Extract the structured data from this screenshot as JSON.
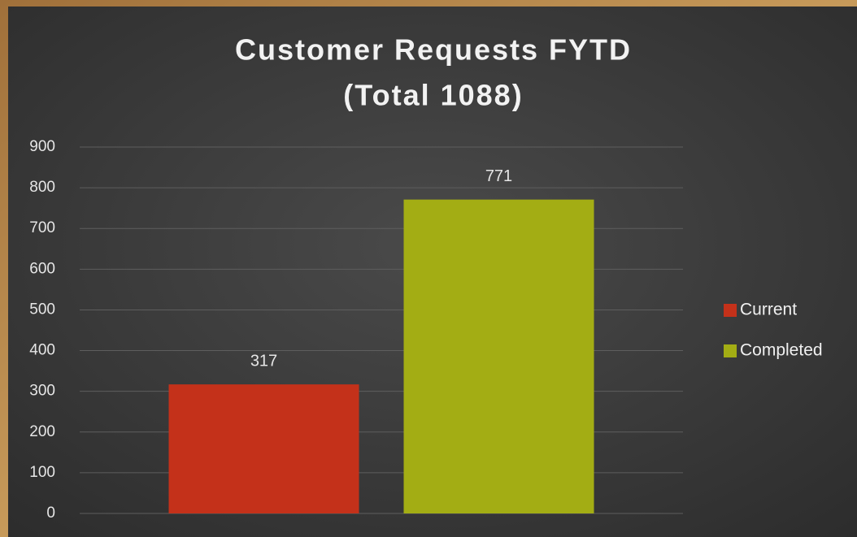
{
  "chart_data": {
    "type": "bar",
    "title": "Customer Requests FYTD",
    "subtitle": "(Total 1088)",
    "categories": [
      null
    ],
    "series": [
      {
        "name": "Current",
        "color": "#c4311a",
        "values": [
          317
        ]
      },
      {
        "name": "Completed",
        "color": "#a3ad14",
        "values": [
          771
        ]
      }
    ],
    "ylim": [
      0,
      900
    ],
    "yticks": [
      0,
      100,
      200,
      300,
      400,
      500,
      600,
      700,
      800,
      900
    ],
    "grid": true,
    "legend": "right",
    "data_labels": true
  }
}
